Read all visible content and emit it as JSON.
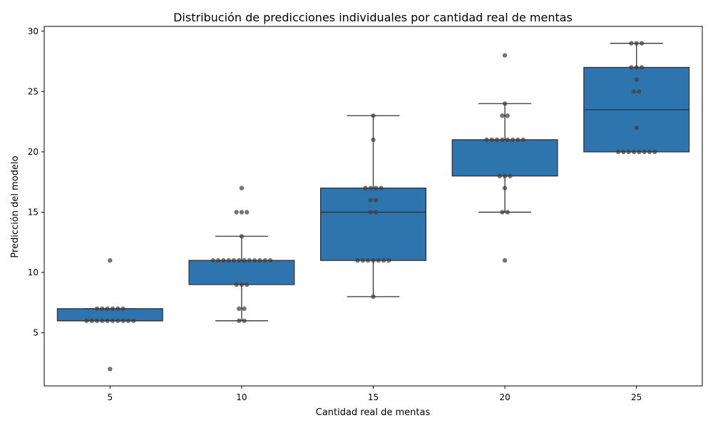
{
  "chart_data": {
    "type": "box",
    "title": "Distribución de predicciones individuales por cantidad real de mentas",
    "xlabel": "Cantidad real de mentas",
    "ylabel": "Predicción del modelo",
    "categories": [
      "5",
      "10",
      "15",
      "20",
      "25"
    ],
    "ylim": [
      0.6,
      30.4
    ],
    "yticks": [
      5,
      10,
      15,
      20,
      25,
      30
    ],
    "grid": false,
    "box_color": "#2e75b0",
    "line_color": "#333333",
    "point_color": "#404040",
    "boxes": [
      {
        "category": "5",
        "whisker_low": 6,
        "q1": 6,
        "median": 6,
        "q3": 7,
        "whisker_high": 7
      },
      {
        "category": "10",
        "whisker_low": 6,
        "q1": 9,
        "median": 11,
        "q3": 11,
        "whisker_high": 13
      },
      {
        "category": "15",
        "whisker_low": 8,
        "q1": 11,
        "median": 15,
        "q3": 17,
        "whisker_high": 23
      },
      {
        "category": "20",
        "whisker_low": 15,
        "q1": 18,
        "median": 21,
        "q3": 21,
        "whisker_high": 24
      },
      {
        "category": "25",
        "whisker_low": 20,
        "q1": 20,
        "median": 23.5,
        "q3": 27,
        "whisker_high": 29
      }
    ],
    "points": [
      {
        "category": "5",
        "values": [
          11,
          7,
          7,
          7,
          7,
          7,
          7,
          6,
          6,
          6,
          6,
          6,
          6,
          6,
          6,
          6,
          6,
          2
        ]
      },
      {
        "category": "10",
        "values": [
          17,
          15,
          15,
          15,
          13,
          11,
          11,
          11,
          11,
          11,
          11,
          11,
          11,
          11,
          11,
          11,
          11,
          9,
          9,
          9,
          7,
          7,
          6,
          6
        ]
      },
      {
        "category": "15",
        "values": [
          23,
          21,
          17,
          17,
          17,
          17,
          16,
          16,
          15,
          15,
          11,
          11,
          11,
          11,
          11,
          11,
          11,
          8
        ]
      },
      {
        "category": "20",
        "values": [
          28,
          24,
          23,
          23,
          21,
          21,
          21,
          21,
          21,
          21,
          21,
          21,
          18,
          18,
          18,
          17,
          15,
          15,
          11
        ]
      },
      {
        "category": "25",
        "values": [
          29,
          29,
          29,
          27,
          27,
          27,
          26,
          25,
          25,
          22,
          20,
          20,
          20,
          20,
          20,
          20,
          20,
          20
        ]
      }
    ]
  }
}
